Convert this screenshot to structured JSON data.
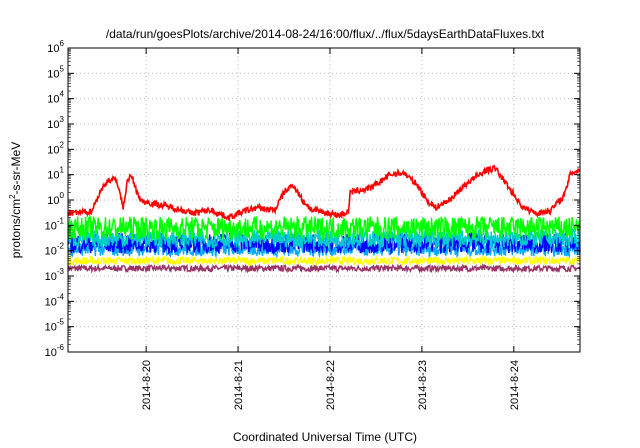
{
  "chart_data": {
    "type": "line",
    "title": "/data/run/goesPlots/archive/2014-08-24/16:00/flux/../flux/5daysEarthDataFluxes.txt",
    "xlabel": "Coordinated Universal Time (UTC)",
    "ylabel": {
      "pre": "protons/cm",
      "sup": "2",
      "post": "-s-sr-MeV"
    },
    "yscale": "log",
    "ylim_exp": [
      -6,
      6
    ],
    "y_ticks": [
      {
        "base": "10",
        "exp": "6"
      },
      {
        "base": "10",
        "exp": "5"
      },
      {
        "base": "10",
        "exp": "4"
      },
      {
        "base": "10",
        "exp": "3"
      },
      {
        "base": "10",
        "exp": "2"
      },
      {
        "base": "10",
        "exp": "1"
      },
      {
        "base": "10",
        "exp": "0"
      },
      {
        "base": "10",
        "exp": "-1"
      },
      {
        "base": "10",
        "exp": "-2"
      },
      {
        "base": "10",
        "exp": "-3"
      },
      {
        "base": "10",
        "exp": "-4"
      },
      {
        "base": "10",
        "exp": "-5"
      },
      {
        "base": "10",
        "exp": "-6"
      }
    ],
    "x_range_days": [
      19.15,
      24.72
    ],
    "x_ticks": [
      {
        "label": "2014-8-20",
        "day": 20
      },
      {
        "label": "2014-8-21",
        "day": 21
      },
      {
        "label": "2014-8-22",
        "day": 22
      },
      {
        "label": "2014-8-23",
        "day": 23
      },
      {
        "label": "2014-8-24",
        "day": 24
      }
    ],
    "grid": true,
    "series": [
      {
        "color": "#ff0000",
        "noise": 0.12,
        "points": [
          [
            19.15,
            0.3
          ],
          [
            19.4,
            0.35
          ],
          [
            19.5,
            2.0
          ],
          [
            19.58,
            6.0
          ],
          [
            19.68,
            6.5
          ],
          [
            19.75,
            0.5
          ],
          [
            19.8,
            7.0
          ],
          [
            19.85,
            8.0
          ],
          [
            19.88,
            3.0
          ],
          [
            19.95,
            0.9
          ],
          [
            20.1,
            0.7
          ],
          [
            20.3,
            0.5
          ],
          [
            20.5,
            0.3
          ],
          [
            20.7,
            0.4
          ],
          [
            20.9,
            0.2
          ],
          [
            21.0,
            0.3
          ],
          [
            21.2,
            0.5
          ],
          [
            21.4,
            0.4
          ],
          [
            21.5,
            2.0
          ],
          [
            21.6,
            4.0
          ],
          [
            21.7,
            1.0
          ],
          [
            21.8,
            0.4
          ],
          [
            21.9,
            0.35
          ],
          [
            22.1,
            0.25
          ],
          [
            22.2,
            0.35
          ],
          [
            22.22,
            2.0
          ],
          [
            22.45,
            3.0
          ],
          [
            22.65,
            10.0
          ],
          [
            22.8,
            12.0
          ],
          [
            22.95,
            4.0
          ],
          [
            23.05,
            1.0
          ],
          [
            23.15,
            0.5
          ],
          [
            23.3,
            1.0
          ],
          [
            23.5,
            5.0
          ],
          [
            23.7,
            15.0
          ],
          [
            23.8,
            18.0
          ],
          [
            23.95,
            3.0
          ],
          [
            24.1,
            0.5
          ],
          [
            24.25,
            0.3
          ],
          [
            24.4,
            0.4
          ],
          [
            24.55,
            1.5
          ],
          [
            24.62,
            12.0
          ],
          [
            24.72,
            15.0
          ]
        ]
      },
      {
        "color": "#00ff00",
        "noise": 0.45,
        "points": [
          [
            19.15,
            0.08
          ],
          [
            24.72,
            0.08
          ]
        ]
      },
      {
        "color": "#00cccc",
        "noise": 0.35,
        "points": [
          [
            19.15,
            0.03
          ],
          [
            24.72,
            0.03
          ]
        ]
      },
      {
        "color": "#0000ff",
        "noise": 0.4,
        "points": [
          [
            19.15,
            0.02
          ],
          [
            24.72,
            0.02
          ]
        ]
      },
      {
        "color": "#00aaff",
        "noise": 0.3,
        "points": [
          [
            19.15,
            0.012
          ],
          [
            24.72,
            0.012
          ]
        ]
      },
      {
        "color": "#ffff00",
        "noise": 0.15,
        "points": [
          [
            19.15,
            0.004
          ],
          [
            24.72,
            0.004
          ]
        ]
      },
      {
        "color": "#993366",
        "noise": 0.12,
        "points": [
          [
            19.15,
            0.002
          ],
          [
            24.72,
            0.002
          ]
        ]
      }
    ]
  }
}
